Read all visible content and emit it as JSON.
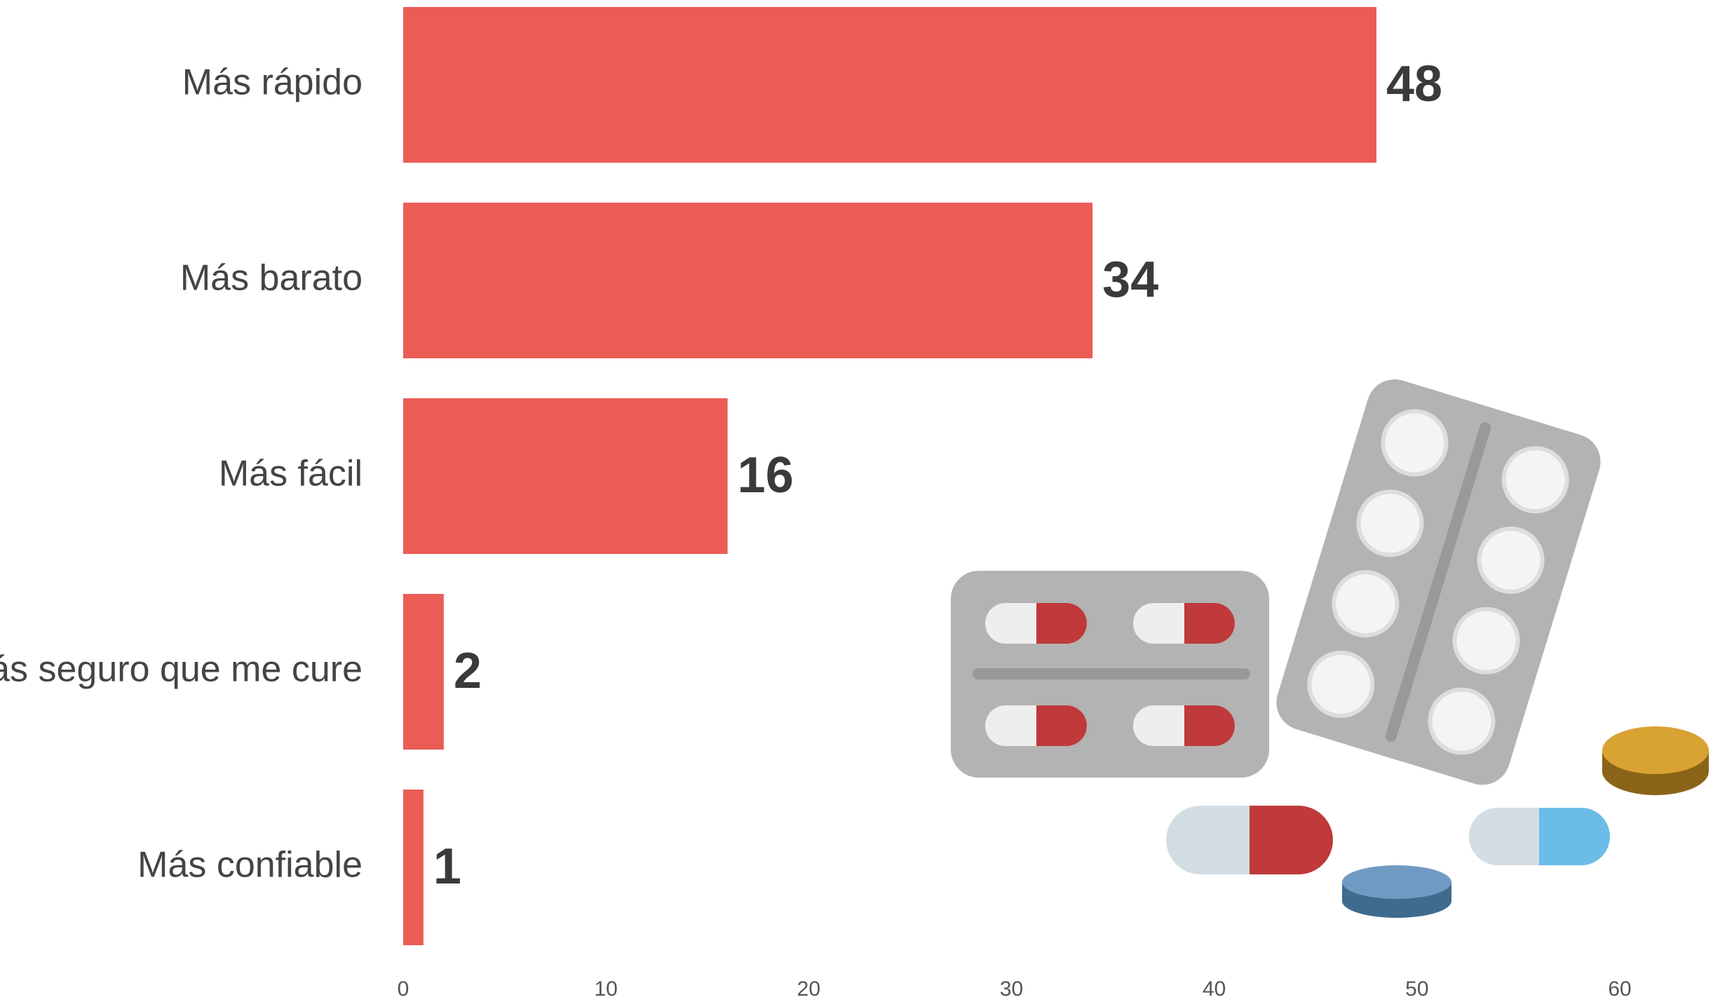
{
  "chart_data": {
    "type": "bar",
    "orientation": "horizontal",
    "categories": [
      "Más rápido",
      "Más barato",
      "Más fácil",
      "Más seguro que me cure",
      "Más confiable"
    ],
    "values": [
      48,
      34,
      16,
      2,
      1
    ],
    "color": "#eb5c56",
    "xlim": [
      0,
      60
    ],
    "xticks": [
      0,
      10,
      20,
      30,
      40,
      50,
      60
    ],
    "grid": false
  }
}
